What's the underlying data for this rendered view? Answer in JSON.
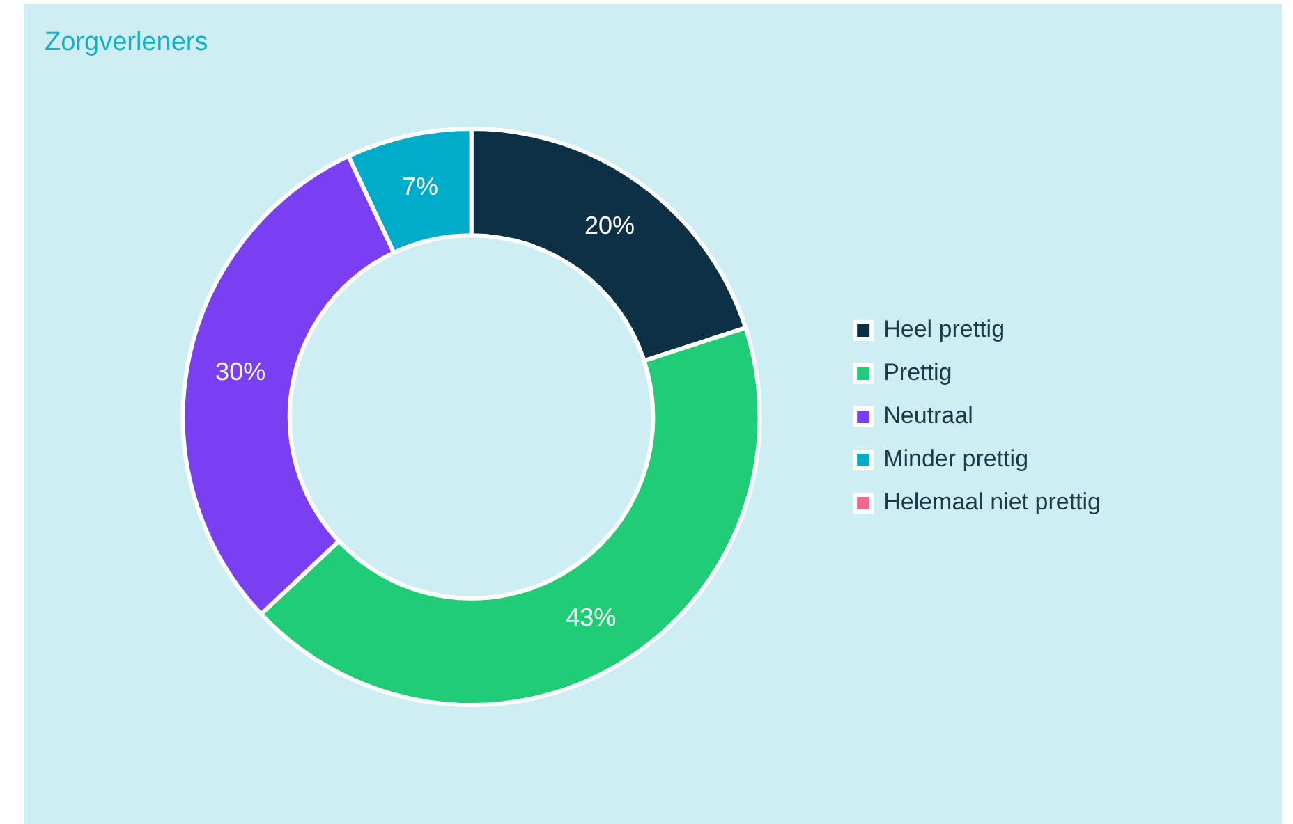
{
  "chart_data": {
    "type": "donut",
    "title": "Zorgverleners",
    "categories": [
      "Heel prettig",
      "Prettig",
      "Neutraal",
      "Minder prettig",
      "Helemaal niet prettig"
    ],
    "values": [
      20,
      43,
      30,
      7,
      0
    ],
    "colors": [
      "#0d3144",
      "#20cc76",
      "#7b3ff2",
      "#00abc8",
      "#f0678a"
    ],
    "value_labels": [
      "20%",
      "43%",
      "30%",
      "7%",
      null
    ],
    "legend": "right"
  }
}
